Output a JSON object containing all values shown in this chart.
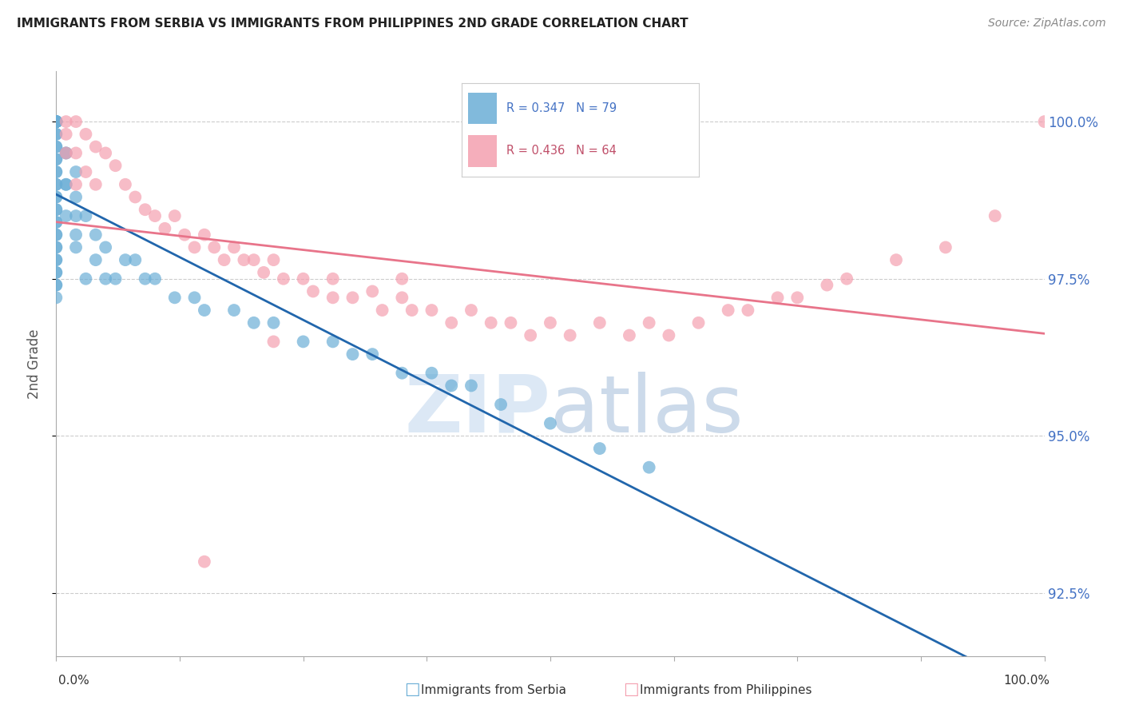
{
  "title": "IMMIGRANTS FROM SERBIA VS IMMIGRANTS FROM PHILIPPINES 2ND GRADE CORRELATION CHART",
  "source": "Source: ZipAtlas.com",
  "ylabel": "2nd Grade",
  "ytick_values": [
    92.5,
    95.0,
    97.5,
    100.0
  ],
  "ytick_labels": [
    "92.5%",
    "95.0%",
    "97.5%",
    "100.0%"
  ],
  "serbia_color": "#6baed6",
  "philippines_color": "#f4a0b0",
  "serbia_R": 0.347,
  "serbia_N": 79,
  "philippines_R": 0.436,
  "philippines_N": 64,
  "serbia_line_color": "#2166ac",
  "philippines_line_color": "#e8748a",
  "legend_label_serbia": "Immigrants from Serbia",
  "legend_label_philippines": "Immigrants from Philippines",
  "background_color": "#ffffff",
  "serbia_x": [
    0.0,
    0.0,
    0.0,
    0.0,
    0.0,
    0.0,
    0.0,
    0.0,
    0.0,
    0.0,
    0.0,
    0.0,
    0.0,
    0.0,
    0.0,
    0.0,
    0.0,
    0.0,
    0.0,
    0.0,
    0.0,
    0.0,
    0.0,
    0.0,
    0.0,
    0.0,
    0.0,
    0.0,
    0.0,
    0.0,
    0.0,
    0.0,
    0.0,
    0.0,
    0.0,
    0.0,
    0.0,
    0.0,
    0.0,
    0.0,
    0.01,
    0.01,
    0.01,
    0.01,
    0.01,
    0.02,
    0.02,
    0.02,
    0.02,
    0.02,
    0.03,
    0.03,
    0.04,
    0.04,
    0.05,
    0.05,
    0.06,
    0.07,
    0.08,
    0.09,
    0.1,
    0.12,
    0.14,
    0.15,
    0.18,
    0.2,
    0.22,
    0.25,
    0.28,
    0.3,
    0.32,
    0.35,
    0.38,
    0.4,
    0.42,
    0.45,
    0.5,
    0.55,
    0.6
  ],
  "serbia_y": [
    100.0,
    100.0,
    100.0,
    100.0,
    100.0,
    100.0,
    100.0,
    100.0,
    100.0,
    100.0,
    100.0,
    100.0,
    100.0,
    99.8,
    99.8,
    99.6,
    99.6,
    99.4,
    99.4,
    99.2,
    99.2,
    99.0,
    99.0,
    98.8,
    98.8,
    98.6,
    98.6,
    98.4,
    98.4,
    98.2,
    98.2,
    98.0,
    98.0,
    97.8,
    97.8,
    97.6,
    97.6,
    97.4,
    97.4,
    97.2,
    99.5,
    99.5,
    99.0,
    99.0,
    98.5,
    99.2,
    98.8,
    98.5,
    98.2,
    98.0,
    98.5,
    97.5,
    98.2,
    97.8,
    98.0,
    97.5,
    97.5,
    97.8,
    97.8,
    97.5,
    97.5,
    97.2,
    97.2,
    97.0,
    97.0,
    96.8,
    96.8,
    96.5,
    96.5,
    96.3,
    96.3,
    96.0,
    96.0,
    95.8,
    95.8,
    95.5,
    95.2,
    94.8,
    94.5
  ],
  "philippines_x": [
    0.01,
    0.01,
    0.01,
    0.02,
    0.02,
    0.02,
    0.03,
    0.03,
    0.04,
    0.04,
    0.05,
    0.06,
    0.07,
    0.08,
    0.09,
    0.1,
    0.11,
    0.12,
    0.13,
    0.14,
    0.15,
    0.16,
    0.17,
    0.18,
    0.19,
    0.2,
    0.21,
    0.22,
    0.23,
    0.25,
    0.26,
    0.28,
    0.3,
    0.32,
    0.33,
    0.35,
    0.36,
    0.38,
    0.4,
    0.42,
    0.44,
    0.46,
    0.48,
    0.5,
    0.52,
    0.55,
    0.58,
    0.6,
    0.62,
    0.65,
    0.68,
    0.7,
    0.73,
    0.75,
    0.78,
    0.8,
    0.85,
    0.9,
    0.95,
    1.0,
    0.15,
    0.22,
    0.28,
    0.35
  ],
  "philippines_y": [
    100.0,
    99.8,
    99.5,
    100.0,
    99.5,
    99.0,
    99.8,
    99.2,
    99.6,
    99.0,
    99.5,
    99.3,
    99.0,
    98.8,
    98.6,
    98.5,
    98.3,
    98.5,
    98.2,
    98.0,
    98.2,
    98.0,
    97.8,
    98.0,
    97.8,
    97.8,
    97.6,
    97.8,
    97.5,
    97.5,
    97.3,
    97.5,
    97.2,
    97.3,
    97.0,
    97.2,
    97.0,
    97.0,
    96.8,
    97.0,
    96.8,
    96.8,
    96.6,
    96.8,
    96.6,
    96.8,
    96.6,
    96.8,
    96.6,
    96.8,
    97.0,
    97.0,
    97.2,
    97.2,
    97.4,
    97.5,
    97.8,
    98.0,
    98.5,
    100.0,
    93.0,
    96.5,
    97.2,
    97.5
  ],
  "xlim": [
    0.0,
    1.0
  ],
  "ylim": [
    91.5,
    100.8
  ]
}
